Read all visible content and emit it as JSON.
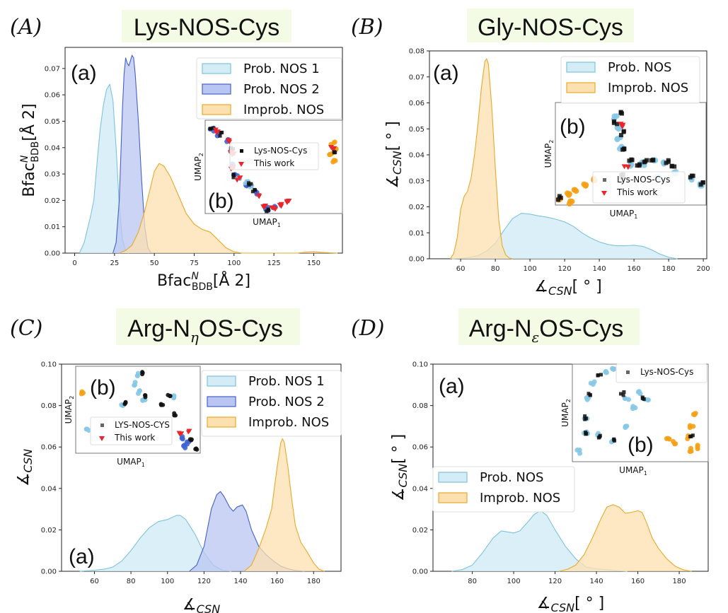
{
  "colors": {
    "prob1_fill": "#d3ecf6",
    "prob1_line": "#7fc3dc",
    "prob2_fill": "#b9c6f1",
    "prob2_line": "#4561c8",
    "improb_fill": "#fde0b0",
    "improb_line": "#e8a92a",
    "title_bg": "#f3fbe4",
    "scatter_black": "#111111",
    "scatter_red": "#e8262b",
    "scatter_orange": "#f5a014",
    "scatter_lightblue": "#86c8e6",
    "scatter_blue": "#3f63d2"
  },
  "chart_data": [
    {
      "id": "A",
      "panel_label": "(A)",
      "title": "Lys-NOS-Cys",
      "type": "area",
      "subplot_label": "(a)",
      "xlabel": "Bfac^N_BDB [Å^2]",
      "xlabel_main": "Bfac",
      "xlabel_sup": "N",
      "xlabel_sub": "BDB",
      "xlabel_tail": "[Å 2]",
      "ylabel_main": "Bfac",
      "ylabel_sup": "N",
      "ylabel_sub": "BDB",
      "ylabel_tail": "[Å 2]",
      "xlim": [
        -6,
        168
      ],
      "ylim": [
        0,
        0.078
      ],
      "xticks": [
        0,
        25,
        50,
        75,
        100,
        125,
        150
      ],
      "yticks": [
        0.0,
        0.01,
        0.02,
        0.03,
        0.04,
        0.05,
        0.06,
        0.07
      ],
      "ytick_labels": [
        "0.00",
        "0.01",
        "0.02",
        "0.03",
        "0.04",
        "0.05",
        "0.06",
        "0.07"
      ],
      "legend_position": "top-right",
      "series": [
        {
          "name": "Prob. NOS 1",
          "style": "prob1",
          "x": [
            3,
            6,
            8,
            10,
            12,
            14,
            16,
            18,
            20,
            22,
            24,
            26,
            28,
            30,
            32,
            34
          ],
          "y": [
            0,
            0.004,
            0.009,
            0.014,
            0.02,
            0.034,
            0.047,
            0.056,
            0.062,
            0.064,
            0.058,
            0.04,
            0.018,
            0.005,
            0.001,
            0
          ]
        },
        {
          "name": "Prob. NOS 2",
          "style": "prob2",
          "x": [
            24,
            26,
            28,
            30,
            31,
            32,
            33,
            34,
            35,
            36,
            37,
            38,
            40,
            42,
            44,
            46,
            48
          ],
          "y": [
            0,
            0.004,
            0.02,
            0.055,
            0.068,
            0.074,
            0.072,
            0.071,
            0.073,
            0.075,
            0.074,
            0.068,
            0.05,
            0.028,
            0.01,
            0.002,
            0
          ]
        },
        {
          "name": "Improb. NOS",
          "style": "improb",
          "x": [
            28,
            32,
            36,
            40,
            44,
            48,
            50,
            53,
            56,
            60,
            65,
            70,
            75,
            80,
            85,
            90,
            95,
            100,
            105,
            110,
            120,
            130,
            140,
            145,
            150,
            155,
            160,
            165
          ],
          "y": [
            0,
            0.001,
            0.003,
            0.008,
            0.016,
            0.026,
            0.031,
            0.034,
            0.033,
            0.029,
            0.022,
            0.015,
            0.011,
            0.009,
            0.008,
            0.005,
            0.002,
            0.0005,
            0,
            0,
            0,
            0,
            0,
            0.0004,
            0.0005,
            0.0003,
            0.0001,
            0
          ]
        }
      ],
      "inset": {
        "label": "(b)",
        "xlabel": "UMAP",
        "xlabel_sub": "1",
        "ylabel": "UMAP",
        "ylabel_sub": "2",
        "legend": [
          {
            "label": "Lys-NOS-Cys",
            "marker": "square"
          },
          {
            "label": "This work",
            "marker": "triangle-down"
          }
        ]
      }
    },
    {
      "id": "B",
      "panel_label": "(B)",
      "title": "Gly-NOS-Cys",
      "type": "area",
      "subplot_label": "(a)",
      "xlabel": "∡_CSN [°]",
      "xlabel_main": "∡",
      "xlabel_sub": "CSN",
      "xlabel_tail": "[ ° ]",
      "ylabel_main": "∡",
      "ylabel_sub": "CSN",
      "ylabel_tail": "[ ° ]",
      "xlim": [
        42,
        202
      ],
      "ylim": [
        0,
        0.08
      ],
      "xticks": [
        60,
        80,
        100,
        120,
        140,
        160,
        180,
        200
      ],
      "yticks": [
        0.0,
        0.01,
        0.02,
        0.03,
        0.04,
        0.05,
        0.06,
        0.07,
        0.08
      ],
      "ytick_labels": [
        "0.00",
        "0.01",
        "0.02",
        "0.03",
        "0.04",
        "0.05",
        "0.06",
        "0.07",
        "0.08"
      ],
      "legend_position": "top-right",
      "series": [
        {
          "name": "Prob. NOS",
          "style": "prob1",
          "x": [
            55,
            60,
            65,
            70,
            75,
            80,
            85,
            90,
            95,
            100,
            105,
            110,
            115,
            120,
            125,
            130,
            135,
            140,
            145,
            150,
            155,
            160,
            165,
            170,
            175,
            180,
            185
          ],
          "y": [
            0,
            0.0002,
            0.0005,
            0.0012,
            0.003,
            0.006,
            0.011,
            0.0155,
            0.0175,
            0.0172,
            0.0165,
            0.016,
            0.0152,
            0.0142,
            0.0125,
            0.01,
            0.008,
            0.0065,
            0.0055,
            0.005,
            0.005,
            0.0052,
            0.0048,
            0.0035,
            0.0018,
            0.0006,
            0
          ]
        },
        {
          "name": "Improb. NOS",
          "style": "improb",
          "x": [
            54,
            56,
            58,
            60,
            62,
            64,
            66,
            68,
            70,
            72,
            74,
            75,
            76,
            78,
            80,
            82,
            84,
            86,
            88,
            90
          ],
          "y": [
            0,
            0.002,
            0.008,
            0.019,
            0.024,
            0.026,
            0.031,
            0.04,
            0.052,
            0.066,
            0.076,
            0.077,
            0.075,
            0.058,
            0.035,
            0.015,
            0.005,
            0.0015,
            0.0003,
            0
          ]
        }
      ],
      "inset": {
        "label": "(b)",
        "xlabel": "UMAP",
        "xlabel_sub": "1",
        "ylabel": "UMAP",
        "ylabel_sub": "2",
        "legend": [
          {
            "label": "Lys-NOS-Cys",
            "marker": "square"
          },
          {
            "label": "This work",
            "marker": "triangle-down"
          }
        ]
      }
    },
    {
      "id": "C",
      "panel_label": "(C)",
      "title": "Arg-N",
      "title_sub": "η",
      "title_tail": "OS-Cys",
      "type": "area",
      "subplot_label": "(a)",
      "xlabel": "∡_CSN",
      "xlabel_main": "∡",
      "xlabel_sub": "CSN",
      "xlabel_tail": "",
      "ylabel_main": "∡",
      "ylabel_sub": "CSN",
      "ylabel_tail": "",
      "xlim": [
        42,
        195
      ],
      "ylim": [
        0,
        0.1
      ],
      "xticks": [
        60,
        80,
        100,
        120,
        140,
        160,
        180
      ],
      "yticks": [
        0.0,
        0.02,
        0.04,
        0.06,
        0.08,
        0.1
      ],
      "ytick_labels": [
        "0.00",
        "0.02",
        "0.04",
        "0.06",
        "0.08",
        "0.10"
      ],
      "legend_position": "top-right",
      "series": [
        {
          "name": "Prob. NOS 1",
          "style": "prob1",
          "x": [
            52,
            60,
            65,
            70,
            75,
            80,
            85,
            90,
            95,
            100,
            105,
            107,
            110,
            115,
            120,
            125,
            130,
            135
          ],
          "y": [
            0,
            0.0005,
            0.001,
            0.002,
            0.005,
            0.01,
            0.016,
            0.021,
            0.024,
            0.025,
            0.027,
            0.027,
            0.025,
            0.018,
            0.009,
            0.003,
            0.0005,
            0
          ]
        },
        {
          "name": "Prob. NOS 2",
          "style": "prob2",
          "x": [
            112,
            116,
            120,
            124,
            127,
            129,
            131,
            134,
            136,
            138,
            141,
            143,
            146,
            150,
            154,
            158,
            162,
            166,
            170,
            175
          ],
          "y": [
            0,
            0.003,
            0.012,
            0.03,
            0.037,
            0.0385,
            0.036,
            0.031,
            0.029,
            0.031,
            0.032,
            0.029,
            0.02,
            0.012,
            0.008,
            0.005,
            0.0025,
            0.0012,
            0.0004,
            0
          ]
        },
        {
          "name": "Improb. NOS",
          "style": "improb",
          "x": [
            142,
            146,
            150,
            154,
            157,
            160,
            162,
            163,
            164,
            166,
            168,
            170,
            173,
            176,
            178,
            180,
            183,
            186
          ],
          "y": [
            0,
            0.003,
            0.011,
            0.021,
            0.03,
            0.05,
            0.062,
            0.064,
            0.062,
            0.05,
            0.035,
            0.022,
            0.014,
            0.01,
            0.007,
            0.004,
            0.001,
            0
          ]
        }
      ],
      "inset": {
        "label": "(b)",
        "xlabel": "UMAP",
        "xlabel_sub": "1",
        "ylabel": "UMAP",
        "ylabel_sub": "2",
        "legend": [
          {
            "label": "LYS-NOS-CYS",
            "marker": "square"
          },
          {
            "label": "This work",
            "marker": "triangle-down"
          }
        ]
      }
    },
    {
      "id": "D",
      "panel_label": "(D)",
      "title": "Arg-N",
      "title_sub": "ε",
      "title_tail": "OS-Cys",
      "type": "area",
      "subplot_label": "(a)",
      "xlabel": "∡_CSN [°]",
      "xlabel_main": "∡",
      "xlabel_sub": "CSN",
      "xlabel_tail": "[ ° ]",
      "ylabel_main": "∡",
      "ylabel_sub": "CSN",
      "ylabel_tail": "[ ° ]",
      "xlim": [
        61,
        194
      ],
      "ylim": [
        0,
        0.1
      ],
      "xticks": [
        80,
        100,
        120,
        140,
        160,
        180
      ],
      "yticks": [
        0.0,
        0.02,
        0.04,
        0.06,
        0.08,
        0.1
      ],
      "ytick_labels": [
        "0.00",
        "0.02",
        "0.04",
        "0.06",
        "0.08",
        "0.10"
      ],
      "legend_position": "center-left",
      "series": [
        {
          "name": "Prob. NOS",
          "style": "prob1",
          "x": [
            70,
            75,
            80,
            85,
            90,
            94,
            97,
            100,
            103,
            107,
            110,
            113,
            116,
            120,
            125,
            130,
            135,
            140,
            145,
            150,
            155
          ],
          "y": [
            0,
            0.0008,
            0.003,
            0.009,
            0.016,
            0.0195,
            0.019,
            0.0185,
            0.0195,
            0.024,
            0.0275,
            0.0292,
            0.027,
            0.02,
            0.012,
            0.006,
            0.002,
            0.0012,
            0.0008,
            0.0003,
            0
          ]
        },
        {
          "name": "Improb. NOS",
          "style": "improb",
          "x": [
            122,
            126,
            130,
            134,
            138,
            142,
            145,
            148,
            151,
            154,
            157,
            160,
            162,
            164,
            167,
            170,
            174,
            178,
            182,
            186
          ],
          "y": [
            0,
            0.001,
            0.003,
            0.008,
            0.016,
            0.025,
            0.031,
            0.0322,
            0.031,
            0.028,
            0.0285,
            0.0292,
            0.0285,
            0.024,
            0.016,
            0.011,
            0.006,
            0.0025,
            0.0007,
            0
          ]
        }
      ],
      "inset": {
        "label": "(b)",
        "xlabel": "UMAP",
        "xlabel_sub": "1",
        "ylabel": "UMAP",
        "ylabel_sub": "2",
        "legend": [
          {
            "label": "Lys-NOS-Cys",
            "marker": "square"
          }
        ]
      }
    }
  ]
}
